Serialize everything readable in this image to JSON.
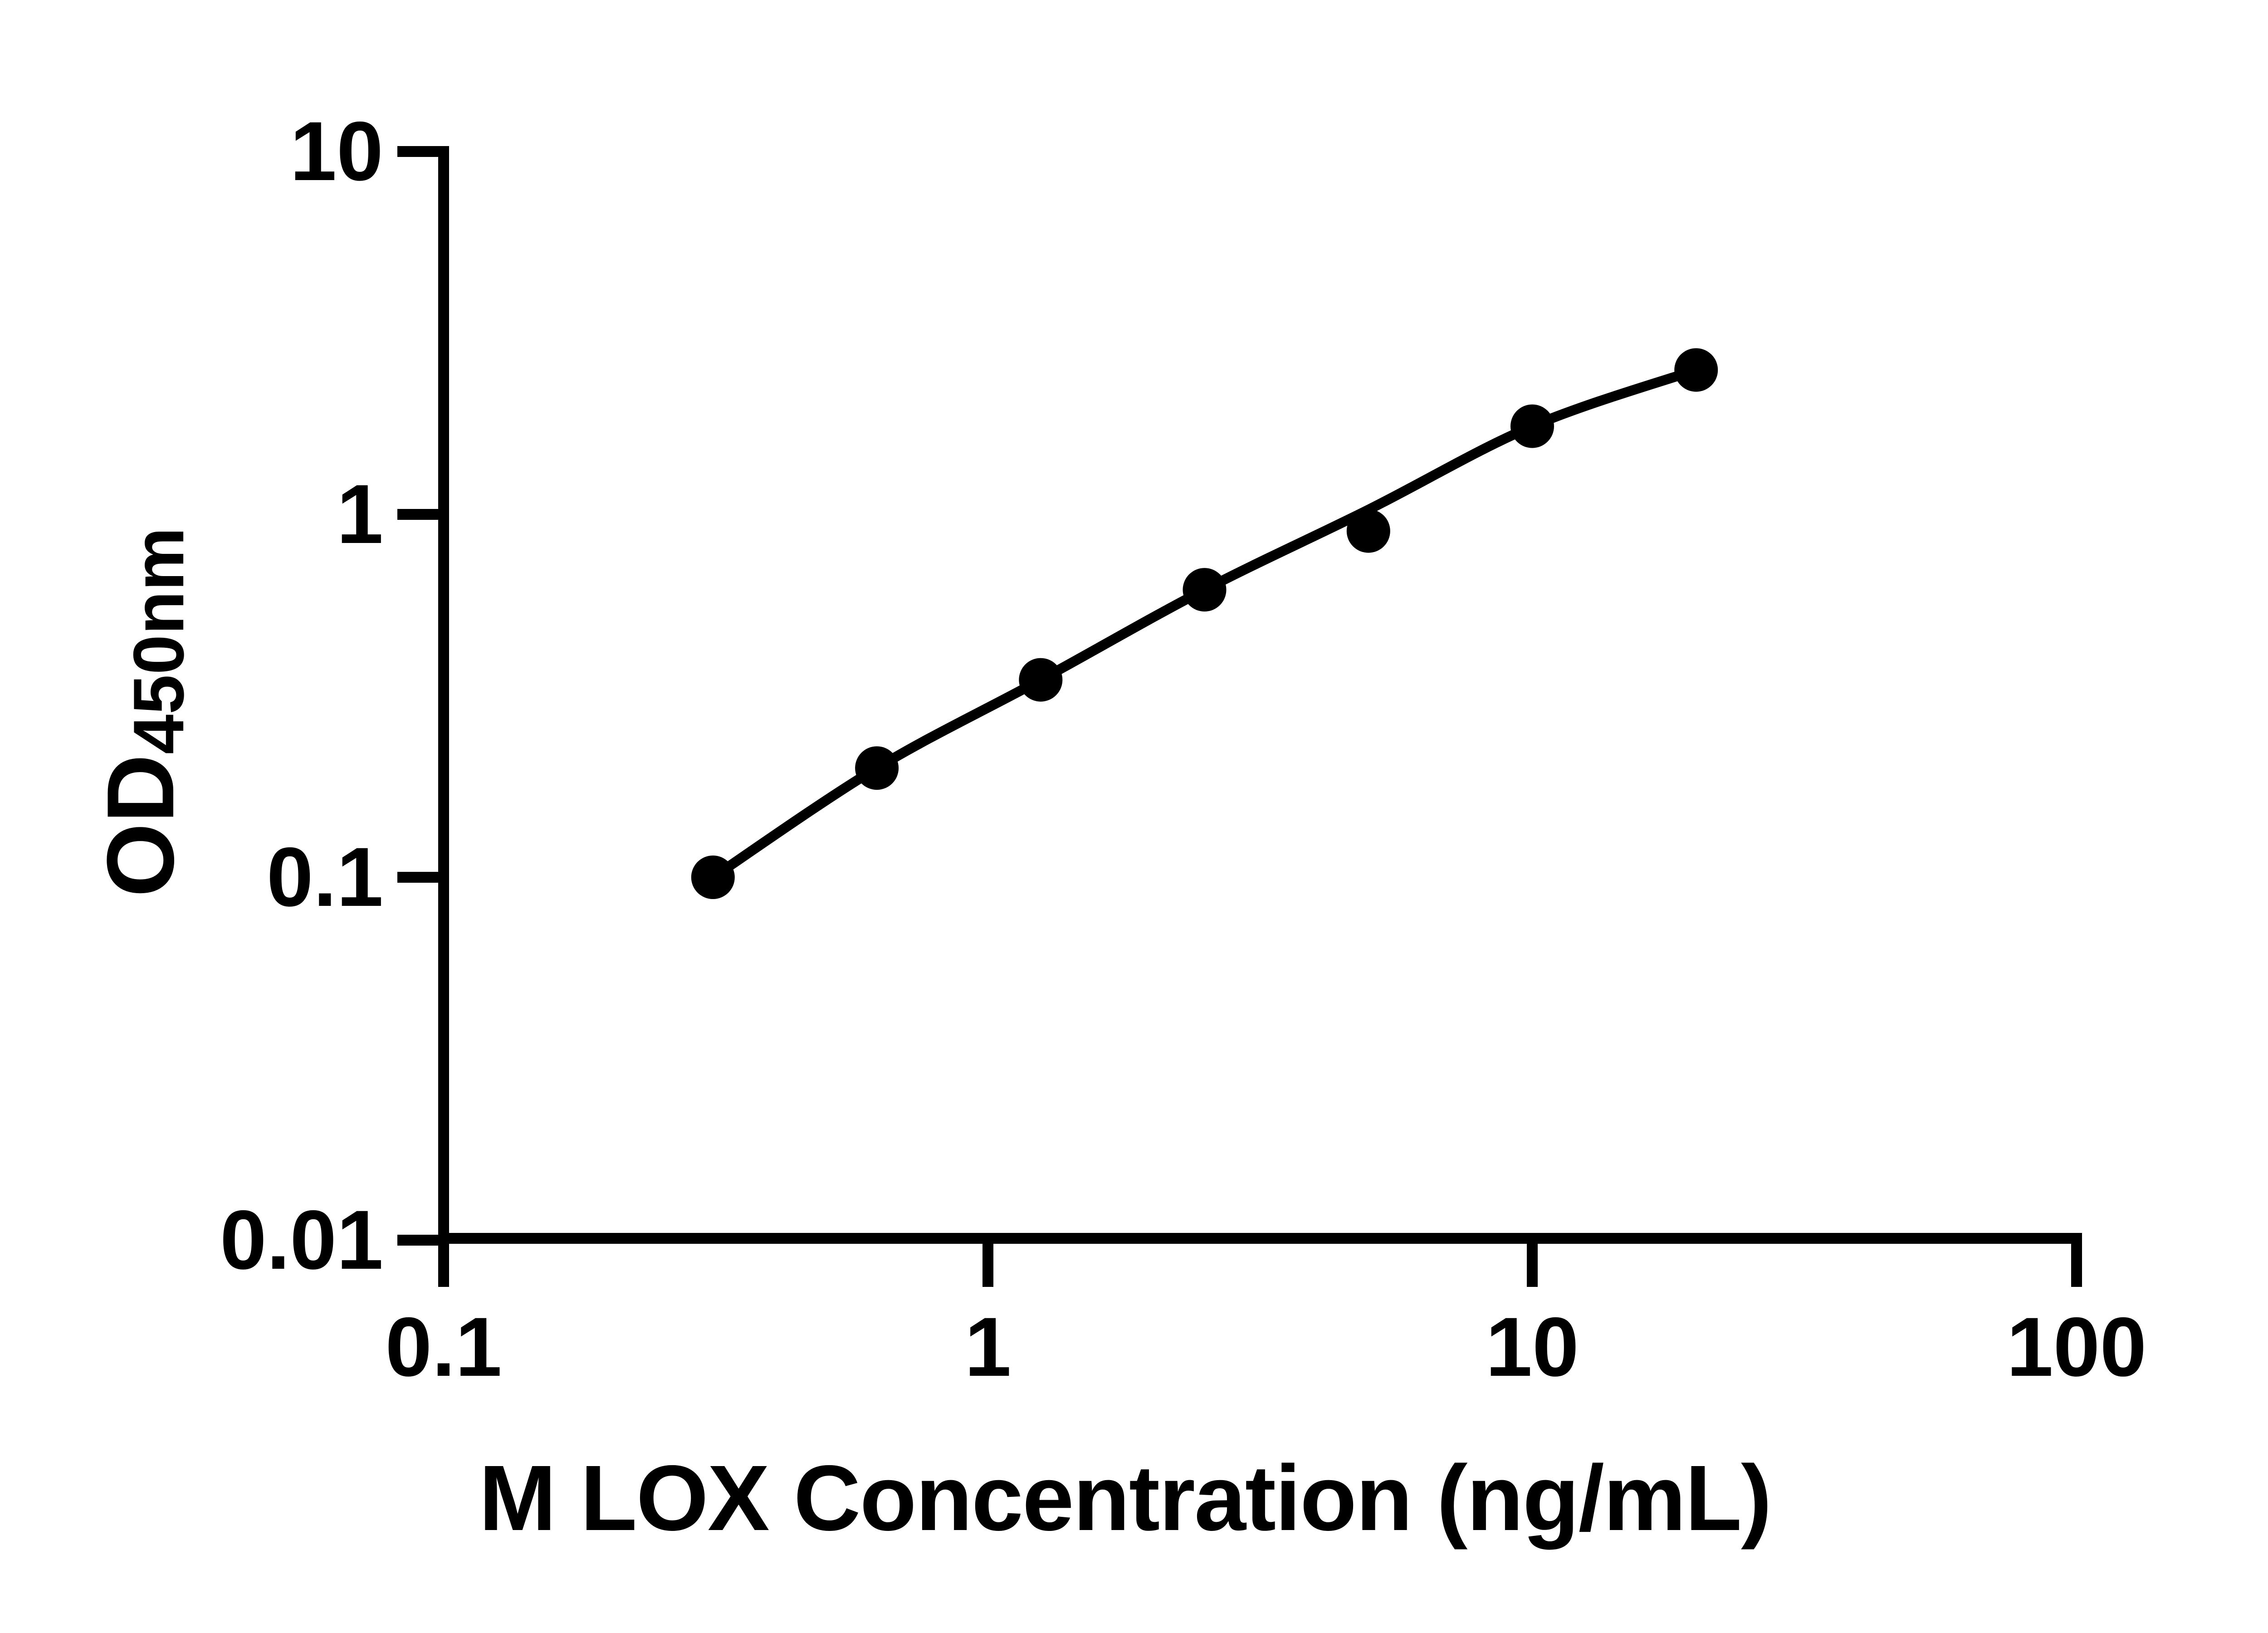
{
  "figure": {
    "background_color": "#ffffff",
    "ink_color": "#000000"
  },
  "chart_data": {
    "type": "scatter",
    "title": "",
    "xlabel": "M LOX Concentration (ng/mL)",
    "ylabel_main": "OD",
    "ylabel_sub": "450nm",
    "x_scale": "log",
    "y_scale": "log",
    "xlim": [
      0.1,
      100
    ],
    "ylim": [
      0.01,
      10
    ],
    "x_ticks": [
      0.1,
      1,
      10,
      100
    ],
    "x_tick_labels": [
      "0.1",
      "1",
      "10",
      "100"
    ],
    "y_ticks": [
      10,
      1,
      0.1,
      0.01
    ],
    "y_tick_labels": [
      "10",
      "1",
      "0.1",
      "0.01"
    ],
    "grid": false,
    "legend_position": "none",
    "series": [
      {
        "name": "standard-data-points",
        "type": "scatter",
        "marker": "filled-circle",
        "x": [
          0.3125,
          0.625,
          1.25,
          2.5,
          5,
          10,
          20
        ],
        "y": [
          0.1,
          0.2,
          0.35,
          0.62,
          0.9,
          1.75,
          2.5
        ]
      },
      {
        "name": "fitted-standard-curve",
        "type": "line",
        "x": [
          0.3125,
          0.625,
          1.25,
          2.5,
          5,
          10,
          20
        ],
        "y": [
          0.1,
          0.2,
          0.35,
          0.62,
          1.03,
          1.75,
          2.5
        ]
      }
    ]
  }
}
